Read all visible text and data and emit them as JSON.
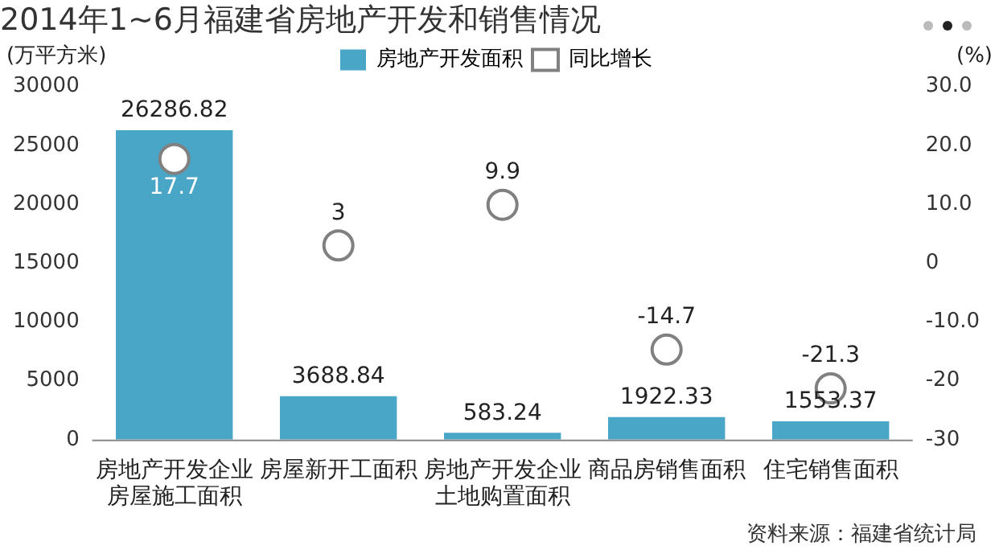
{
  "chart_data": {
    "type": "bar",
    "title": "2014年1~6月福建省房地产开发和销售情况",
    "ylabel": "(万平方米)",
    "y2label": "(%)",
    "categories": [
      "房地产开发企业房屋施工面积",
      "房屋新开工面积",
      "房地产开发企业土地购置面积",
      "商品房销售面积",
      "住宅销售面积"
    ],
    "series": [
      {
        "name": "房地产开发面积",
        "color": "#4aa6c6",
        "values": [
          26286.82,
          3688.84,
          583.24,
          1922.33,
          1553.37
        ]
      },
      {
        "name": "同比增长",
        "type": "scatter",
        "axis": "y2",
        "color": "#808080",
        "values": [
          17.7,
          3,
          9.9,
          -14.7,
          -21.3
        ]
      }
    ],
    "ylim": [
      0,
      30000
    ],
    "yticks": [
      0,
      5000,
      10000,
      15000,
      20000,
      25000,
      30000
    ],
    "y2lim": [
      -30,
      30
    ],
    "y2ticks": [
      -30,
      -20,
      {
        "value": -10,
        "label": "-10.0"
      },
      0,
      {
        "value": 10,
        "label": "10.0"
      },
      {
        "value": 20,
        "label": "20.0"
      },
      {
        "value": 30,
        "label": "30.0"
      }
    ],
    "data_labels": true,
    "grid": false,
    "legend": "top",
    "marker": "circle",
    "annotations": [
      "资料来源：福建省统计局"
    ]
  }
}
